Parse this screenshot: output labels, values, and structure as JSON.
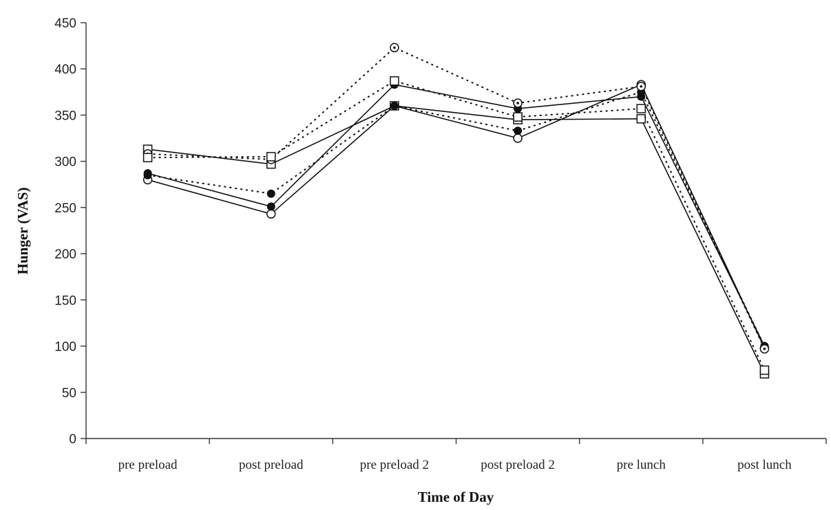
{
  "chart_data": {
    "type": "line",
    "title": "",
    "xlabel": "Time of Day",
    "ylabel": "Hunger (VAS)",
    "categories": [
      "pre preload",
      "post preload",
      "pre preload 2",
      "post preload 2",
      "pre lunch",
      "post lunch"
    ],
    "ylim": [
      0,
      450
    ],
    "yticks": [
      0,
      50,
      100,
      150,
      200,
      250,
      300,
      350,
      400,
      450
    ],
    "grid": false,
    "legend": "none",
    "series": [
      {
        "values": [
          280,
          243,
          360,
          325,
          383,
          98
        ],
        "line_style": "solid",
        "marker": "open-circle"
      },
      {
        "values": [
          287,
          251,
          383,
          357,
          370,
          100
        ],
        "line_style": "solid",
        "marker": "filled-circle"
      },
      {
        "values": [
          313,
          297,
          360,
          345,
          346,
          70
        ],
        "line_style": "solid",
        "marker": "open-square"
      },
      {
        "values": [
          285,
          265,
          360,
          333,
          375,
          100
        ],
        "line_style": "dotted",
        "marker": "filled-circle"
      },
      {
        "values": [
          308,
          302,
          423,
          363,
          381,
          97
        ],
        "line_style": "dotted",
        "marker": "dotted-circle"
      },
      {
        "values": [
          304,
          305,
          387,
          348,
          357,
          74
        ],
        "line_style": "dotted",
        "marker": "open-square"
      }
    ]
  }
}
